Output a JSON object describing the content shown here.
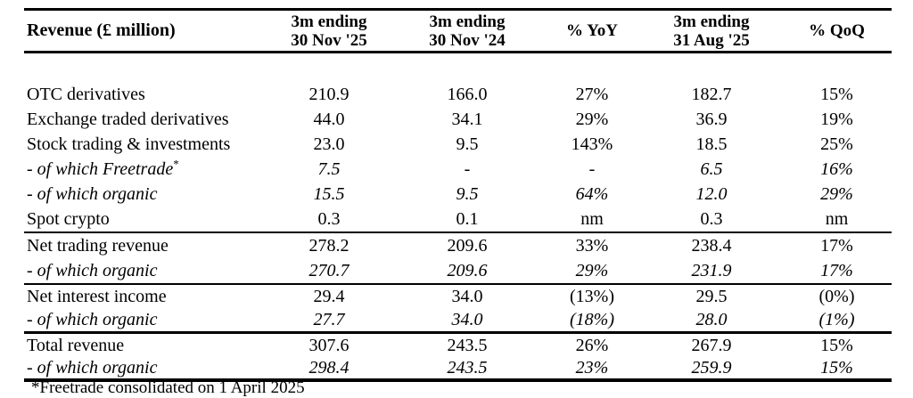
{
  "table": {
    "header": {
      "label": "Revenue (£ million)",
      "columns": [
        "3m ending\n30 Nov '25",
        "3m ending\n30 Nov '24",
        "% YoY",
        "3m ending\n31 Aug '25",
        "% QoQ"
      ]
    },
    "rows": [
      {
        "label": "OTC derivatives",
        "values": [
          "210.9",
          "166.0",
          "27%",
          "182.7",
          "15%"
        ]
      },
      {
        "label": "Exchange traded derivatives",
        "values": [
          "44.0",
          "34.1",
          "29%",
          "36.9",
          "19%"
        ]
      },
      {
        "label": "Stock trading & investments",
        "values": [
          "23.0",
          "9.5",
          "143%",
          "18.5",
          "25%"
        ]
      },
      {
        "label": "- of which Freetrade",
        "sup": "*",
        "values": [
          "7.5",
          "-",
          "-",
          "6.5",
          "16%"
        ]
      },
      {
        "label": "- of which organic",
        "values": [
          "15.5",
          "9.5",
          "64%",
          "12.0",
          "29%"
        ]
      },
      {
        "label": "Spot crypto",
        "values": [
          "0.3",
          "0.1",
          "nm",
          "0.3",
          "nm"
        ]
      },
      {
        "label": "Net trading revenue",
        "values": [
          "278.2",
          "209.6",
          "33%",
          "238.4",
          "17%"
        ]
      },
      {
        "label": "- of which organic",
        "values": [
          "270.7",
          "209.6",
          "29%",
          "231.9",
          "17%"
        ]
      },
      {
        "label": "Net interest income",
        "values": [
          "29.4",
          "34.0",
          "(13%)",
          "29.5",
          "(0%)"
        ]
      },
      {
        "label": "- of which organic",
        "values": [
          "27.7",
          "34.0",
          "(18%)",
          "28.0",
          "(1%)"
        ]
      },
      {
        "label": "Total revenue",
        "values": [
          "307.6",
          "243.5",
          "26%",
          "267.9",
          "15%"
        ]
      },
      {
        "label": "- of which organic",
        "values": [
          "298.4",
          "243.5",
          "23%",
          "259.9",
          "15%"
        ]
      }
    ],
    "footnote": "*Freetrade consolidated on 1 April 2025"
  }
}
